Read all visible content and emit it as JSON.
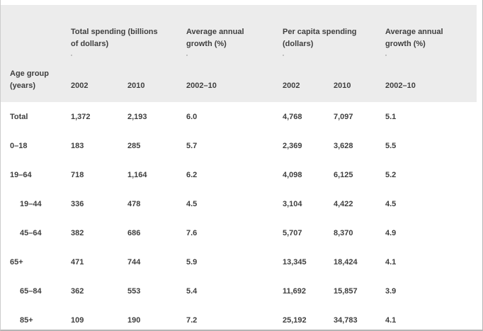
{
  "colors": {
    "header_bg": "#ececec",
    "text": "#3f3f3f",
    "frame_border": "#b5b5b5",
    "left_border": "#cccccc",
    "row_bg": "#ffffff"
  },
  "table": {
    "row_header": "Age group\n(years)",
    "header_groups": [
      {
        "label": "Total spending (billions\nof dollars)"
      },
      {
        "label": "Average annual\ngrowth (%)"
      },
      {
        "label": "Per capita spending\n(dollars)"
      },
      {
        "label": "Average annual\ngrowth (%)"
      }
    ],
    "sub_headers": [
      "2002",
      "2010",
      "2002–10",
      "2002",
      "2010",
      "2002–10"
    ],
    "rows": [
      {
        "label": "Total",
        "indent": false,
        "values": [
          "1,372",
          "2,193",
          "6.0",
          "4,768",
          "7,097",
          "5.1"
        ]
      },
      {
        "label": "0–18",
        "indent": false,
        "values": [
          "183",
          "285",
          "5.7",
          "2,369",
          "3,628",
          "5.5"
        ]
      },
      {
        "label": "19–64",
        "indent": false,
        "values": [
          "718",
          "1,164",
          "6.2",
          "4,098",
          "6,125",
          "5.2"
        ]
      },
      {
        "label": "19–44",
        "indent": true,
        "values": [
          "336",
          "478",
          "4.5",
          "3,104",
          "4,422",
          "4.5"
        ]
      },
      {
        "label": "45–64",
        "indent": true,
        "values": [
          "382",
          "686",
          "7.6",
          "5,707",
          "8,370",
          "4.9"
        ]
      },
      {
        "label": "65+",
        "indent": false,
        "values": [
          "471",
          "744",
          "5.9",
          "13,345",
          "18,424",
          "4.1"
        ]
      },
      {
        "label": "65–84",
        "indent": true,
        "values": [
          "362",
          "553",
          "5.4",
          "11,692",
          "15,857",
          "3.9"
        ]
      },
      {
        "label": "85+",
        "indent": true,
        "values": [
          "109",
          "190",
          "7.2",
          "25,192",
          "34,783",
          "4.1"
        ]
      }
    ]
  },
  "chart_data": {
    "type": "table",
    "title": "",
    "row_header": "Age group (years)",
    "column_groups": [
      {
        "label": "Total spending (billions of dollars)",
        "columns": [
          "2002",
          "2010"
        ]
      },
      {
        "label": "Average annual growth (%)",
        "columns": [
          "2002–10"
        ]
      },
      {
        "label": "Per capita spending (dollars)",
        "columns": [
          "2002",
          "2010"
        ]
      },
      {
        "label": "Average annual growth (%)",
        "columns": [
          "2002–10"
        ]
      }
    ],
    "rows": [
      {
        "age_group": "Total",
        "total_spending_2002": 1372,
        "total_spending_2010": 2193,
        "growth_total_2002_10": 6.0,
        "per_capita_2002": 4768,
        "per_capita_2010": 7097,
        "growth_per_capita_2002_10": 5.1
      },
      {
        "age_group": "0–18",
        "total_spending_2002": 183,
        "total_spending_2010": 285,
        "growth_total_2002_10": 5.7,
        "per_capita_2002": 2369,
        "per_capita_2010": 3628,
        "growth_per_capita_2002_10": 5.5
      },
      {
        "age_group": "19–64",
        "total_spending_2002": 718,
        "total_spending_2010": 1164,
        "growth_total_2002_10": 6.2,
        "per_capita_2002": 4098,
        "per_capita_2010": 6125,
        "growth_per_capita_2002_10": 5.2
      },
      {
        "age_group": "19–44",
        "total_spending_2002": 336,
        "total_spending_2010": 478,
        "growth_total_2002_10": 4.5,
        "per_capita_2002": 3104,
        "per_capita_2010": 4422,
        "growth_per_capita_2002_10": 4.5
      },
      {
        "age_group": "45–64",
        "total_spending_2002": 382,
        "total_spending_2010": 686,
        "growth_total_2002_10": 7.6,
        "per_capita_2002": 5707,
        "per_capita_2010": 8370,
        "growth_per_capita_2002_10": 4.9
      },
      {
        "age_group": "65+",
        "total_spending_2002": 471,
        "total_spending_2010": 744,
        "growth_total_2002_10": 5.9,
        "per_capita_2002": 13345,
        "per_capita_2010": 18424,
        "growth_per_capita_2002_10": 4.1
      },
      {
        "age_group": "65–84",
        "total_spending_2002": 362,
        "total_spending_2010": 553,
        "growth_total_2002_10": 5.4,
        "per_capita_2002": 11692,
        "per_capita_2010": 15857,
        "growth_per_capita_2002_10": 3.9
      },
      {
        "age_group": "85+",
        "total_spending_2002": 109,
        "total_spending_2010": 190,
        "growth_total_2002_10": 7.2,
        "per_capita_2002": 25192,
        "per_capita_2010": 34783,
        "growth_per_capita_2002_10": 4.1
      }
    ]
  }
}
